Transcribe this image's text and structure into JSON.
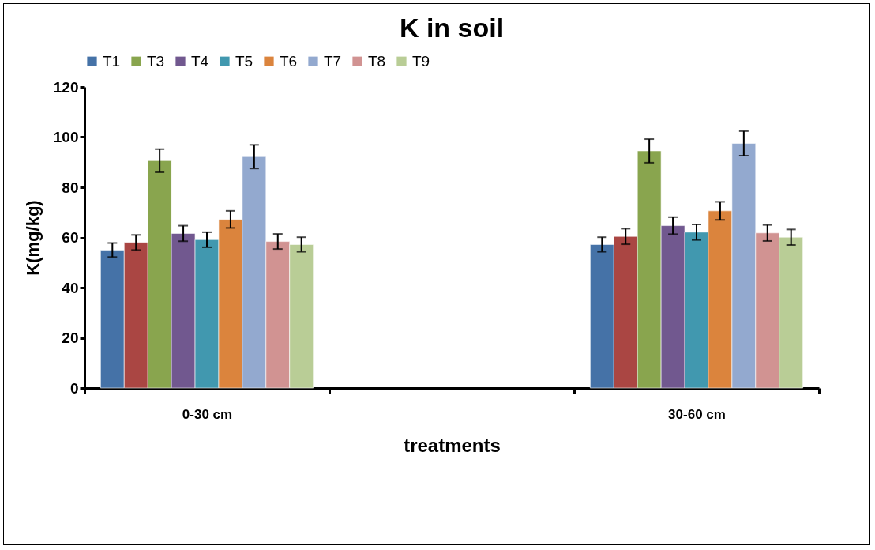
{
  "chart_data": {
    "type": "bar",
    "title": "K in soil",
    "xlabel": "treatments",
    "ylabel": "K(mg/kg)",
    "categories": [
      "0-30 cm",
      null,
      "30-60 cm"
    ],
    "ylim": [
      0,
      120
    ],
    "yticks": [
      0,
      20,
      40,
      60,
      80,
      100,
      120
    ],
    "grid": false,
    "legend": "top",
    "series": [
      {
        "name": "T1",
        "color": "#4572a7",
        "values": [
          55.0,
          null,
          57.2
        ],
        "errors": [
          2.8,
          null,
          2.9
        ]
      },
      {
        "color": "#aa4643",
        "values": [
          58.0,
          null,
          60.4
        ],
        "errors": [
          3.0,
          null,
          3.1
        ]
      },
      {
        "name": "T3",
        "color": "#89a54e",
        "values": [
          90.6,
          null,
          94.5
        ],
        "errors": [
          4.6,
          null,
          4.7
        ]
      },
      {
        "name": "T4",
        "color": "#71588f",
        "values": [
          61.6,
          null,
          64.7
        ],
        "errors": [
          3.1,
          null,
          3.4
        ]
      },
      {
        "name": "T5",
        "color": "#4198af",
        "values": [
          59.1,
          null,
          62.1
        ],
        "errors": [
          3.0,
          null,
          3.1
        ]
      },
      {
        "name": "T6",
        "color": "#db843d",
        "values": [
          67.2,
          null,
          70.6
        ],
        "errors": [
          3.4,
          null,
          3.6
        ]
      },
      {
        "name": "T7",
        "color": "#93a9cf",
        "values": [
          92.2,
          null,
          97.5
        ],
        "errors": [
          4.7,
          null,
          4.9
        ]
      },
      {
        "name": "T8",
        "color": "#d19392",
        "values": [
          58.4,
          null,
          61.8
        ],
        "errors": [
          3.0,
          null,
          3.2
        ]
      },
      {
        "name": "T9",
        "color": "#b9cd96",
        "values": [
          57.2,
          null,
          60.1
        ],
        "errors": [
          2.9,
          null,
          3.1
        ]
      }
    ]
  }
}
